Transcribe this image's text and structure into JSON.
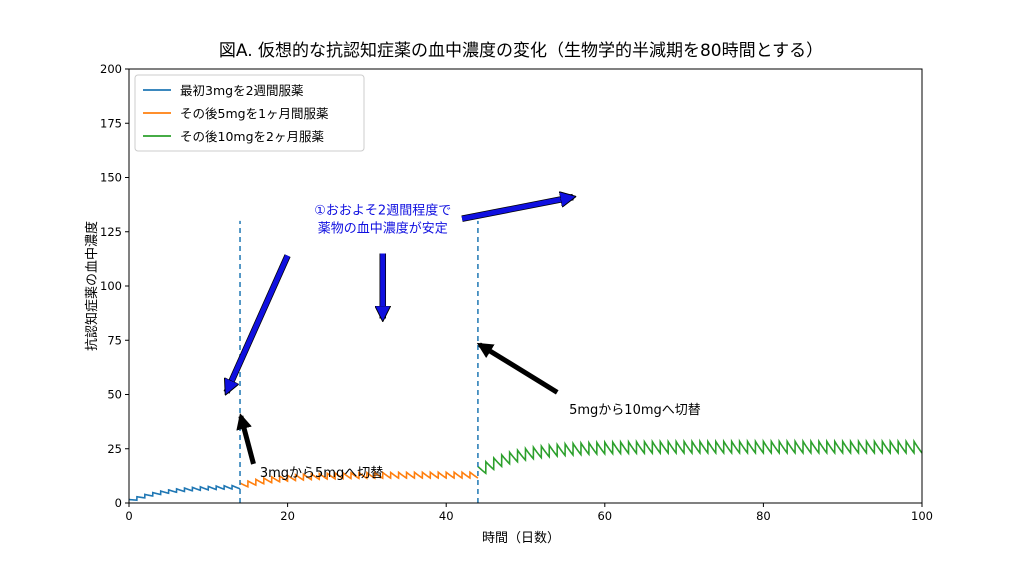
{
  "chart_data": {
    "type": "line",
    "title": "図A. 仮想的な抗認知症薬の血中濃度の変化（生物学的半減期を80時間とする）",
    "xlabel": "時間（日数）",
    "ylabel": "抗認知症薬の血中濃度",
    "xlim": [
      0,
      100
    ],
    "ylim": [
      0,
      200
    ],
    "xticks": [
      0,
      20,
      40,
      60,
      80,
      100
    ],
    "yticks": [
      0,
      25,
      50,
      75,
      100,
      125,
      150,
      175,
      200
    ],
    "grid": false,
    "legend_position": "top-left",
    "simulation": {
      "half_life_hours": 80,
      "dose_interval_days": 1
    },
    "series": [
      {
        "name": "最初3mgを2週間服薬",
        "color": "#1f77b4",
        "dose": 3,
        "day_start": 0,
        "day_end": 14
      },
      {
        "name": "その後5mgを1ヶ月間服薬",
        "color": "#ff7f0e",
        "dose": 5,
        "day_start": 14,
        "day_end": 44
      },
      {
        "name": "その後10mgを2ヶ月服薬",
        "color": "#2ca02c",
        "dose": 10,
        "day_start": 44,
        "day_end": 100
      }
    ],
    "vlines": [
      {
        "x": 14,
        "color": "#1f77b4"
      },
      {
        "x": 44,
        "color": "#1f77b4"
      }
    ],
    "annotations": [
      {
        "text_lines": [
          "①おおよそ2週間程度で",
          "薬物の血中濃度が安定"
        ],
        "color": "#1010e0",
        "text_x": 32,
        "text_y": 133
      },
      {
        "text_lines": [
          "3mgから5mgへ切替"
        ],
        "color": "#000000",
        "text_x": 16.5,
        "text_y": 12
      },
      {
        "text_lines": [
          "5mgから10mgへ切替"
        ],
        "color": "#000000",
        "text_x": 55.5,
        "text_y": 41
      }
    ],
    "arrows": [
      {
        "color": "blue",
        "from": [
          20,
          114
        ],
        "to": [
          12.3,
          51
        ]
      },
      {
        "color": "blue",
        "from": [
          32,
          115
        ],
        "to": [
          32,
          85
        ]
      },
      {
        "color": "blue",
        "from": [
          42,
          131
        ],
        "to": [
          56,
          141
        ]
      },
      {
        "color": "black",
        "from": [
          15.7,
          18
        ],
        "to": [
          14.1,
          40
        ]
      },
      {
        "color": "black",
        "from": [
          54,
          51
        ],
        "to": [
          44.2,
          73
        ]
      }
    ]
  }
}
